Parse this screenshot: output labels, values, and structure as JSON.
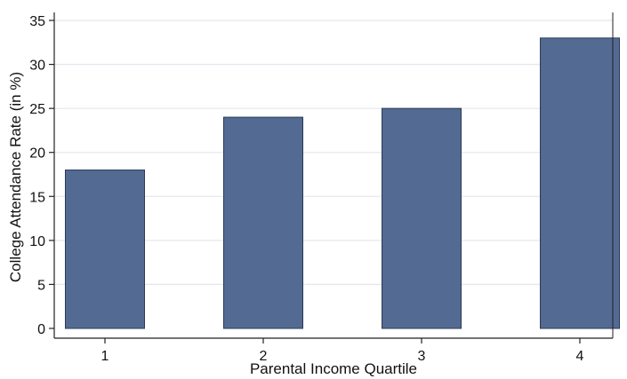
{
  "chart_data": {
    "type": "bar",
    "title": "",
    "xlabel": "Parental Income Quartile",
    "ylabel": "College Attendance Rate (in %)",
    "categories": [
      "1",
      "2",
      "3",
      "4"
    ],
    "values": [
      18,
      24,
      25,
      33
    ],
    "ylim": [
      0,
      35
    ],
    "yticks": [
      "0",
      "5",
      "10",
      "15",
      "20",
      "25",
      "30",
      "35"
    ],
    "grid": true,
    "legend": "none",
    "colors": {
      "bar_fill": "#536a92",
      "bar_stroke": "#2b3a57",
      "grid": "#e4e8ef",
      "axis": "#222222"
    }
  }
}
